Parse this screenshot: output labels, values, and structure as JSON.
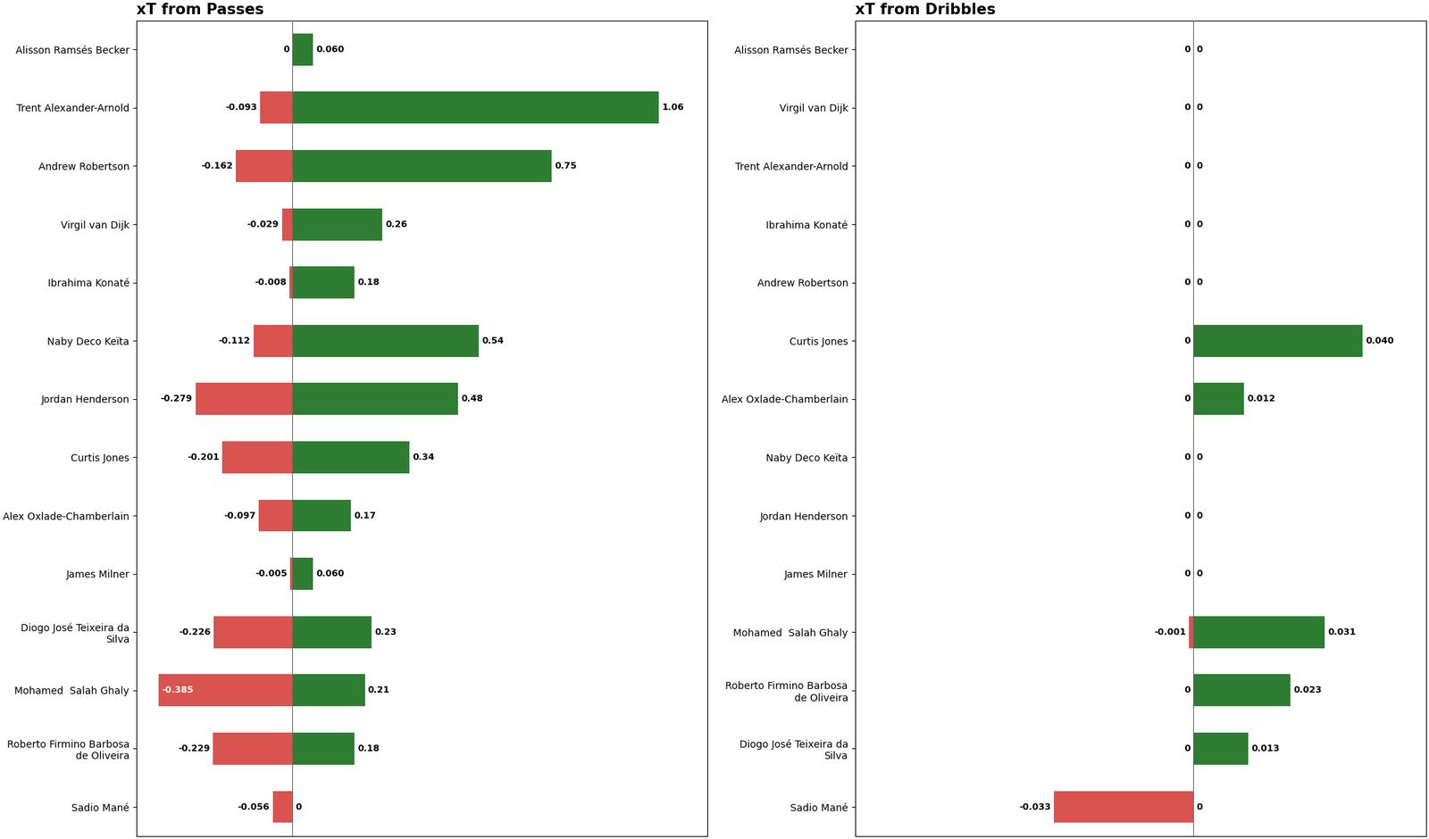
{
  "chart_data": [
    {
      "type": "bar",
      "orientation": "horizontal",
      "title": "xT from Passes",
      "categories": [
        "Alisson Ramsés Becker",
        "Trent Alexander-Arnold",
        "Andrew Robertson",
        "Virgil van Dijk",
        "Ibrahima Konaté",
        "Naby Deco Keïta",
        "Jordan Henderson",
        "Curtis Jones",
        "Alex Oxlade-Chamberlain",
        "James Milner",
        "Diogo José Teixeira da\nSilva",
        "Mohamed  Salah Ghaly",
        "Roberto Firmino Barbosa\nde Oliveira",
        "Sadio Mané"
      ],
      "series": [
        {
          "color": "#d9534f",
          "values": [
            0.0,
            -0.093,
            -0.162,
            -0.029,
            -0.008,
            -0.112,
            -0.279,
            -0.201,
            -0.097,
            -0.005,
            -0.226,
            -0.385,
            -0.229,
            -0.056
          ],
          "value_labels": [
            "0",
            "-0.093",
            "-0.162",
            "-0.029",
            "-0.008",
            "-0.112",
            "-0.279",
            "-0.201",
            "-0.097",
            "-0.005",
            "-0.226",
            "-0.385",
            "-0.229",
            "-0.056"
          ]
        },
        {
          "color": "#2e7d32",
          "values": [
            0.06,
            1.06,
            0.75,
            0.26,
            0.18,
            0.54,
            0.48,
            0.34,
            0.17,
            0.06,
            0.23,
            0.21,
            0.18,
            0.0
          ],
          "value_labels": [
            "0.060",
            "1.06",
            "0.75",
            "0.26",
            "0.18",
            "0.54",
            "0.48",
            "0.34",
            "0.17",
            "0.060",
            "0.23",
            "0.21",
            "0.18",
            "0"
          ]
        }
      ],
      "xlim": [
        -0.45,
        1.2
      ],
      "grid": false,
      "data_labels": true,
      "tick_labels": "y"
    },
    {
      "type": "bar",
      "orientation": "horizontal",
      "title": "xT from Dribbles",
      "categories": [
        "Alisson Ramsés Becker",
        "Virgil van Dijk",
        "Trent Alexander-Arnold",
        "Ibrahima Konaté",
        "Andrew Robertson",
        "Curtis Jones",
        "Alex Oxlade-Chamberlain",
        "Naby Deco Keïta",
        "Jordan Henderson",
        "James Milner",
        "Mohamed  Salah Ghaly",
        "Roberto Firmino Barbosa\nde Oliveira",
        "Diogo José Teixeira da\nSilva",
        "Sadio Mané"
      ],
      "series": [
        {
          "color": "#d9534f",
          "values": [
            0.0,
            0.0,
            0.0,
            0.0,
            0.0,
            0.0,
            0.0,
            0.0,
            0.0,
            0.0,
            -0.001,
            0.0,
            0.0,
            -0.033
          ],
          "value_labels": [
            "0",
            "0",
            "0",
            "0",
            "0",
            "0",
            "0",
            "0",
            "0",
            "0",
            "-0.001",
            "0",
            "0",
            "-0.033"
          ]
        },
        {
          "color": "#2e7d32",
          "values": [
            0.0,
            0.0,
            0.0,
            0.0,
            0.0,
            0.04,
            0.012,
            0.0,
            0.0,
            0.0,
            0.031,
            0.023,
            0.013,
            0.0
          ],
          "value_labels": [
            "0",
            "0",
            "0",
            "0",
            "0",
            "0.040",
            "0.012",
            "0",
            "0",
            "0",
            "0.031",
            "0.023",
            "0.013",
            "0"
          ]
        }
      ],
      "xlim": [
        -0.08,
        0.055
      ],
      "grid": false,
      "data_labels": true,
      "tick_labels": "y"
    }
  ]
}
